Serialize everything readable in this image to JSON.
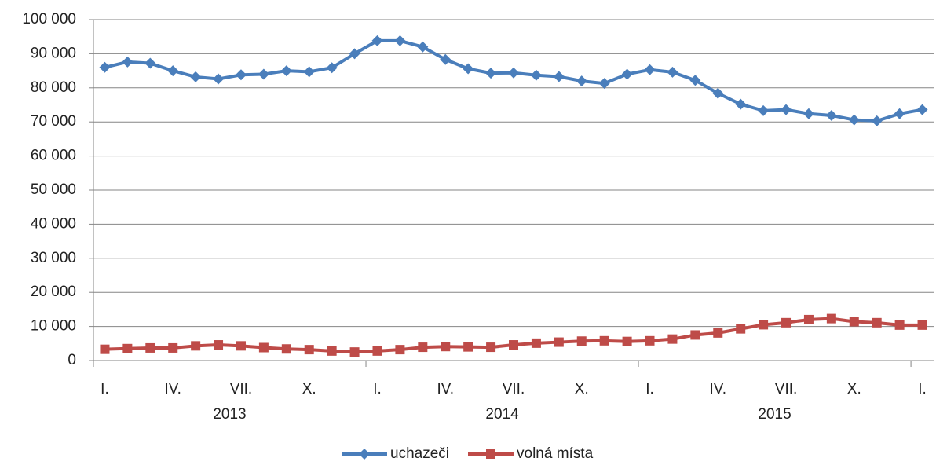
{
  "chart_data": {
    "type": "line",
    "categories": [
      "I.",
      null,
      null,
      "IV.",
      null,
      null,
      "VII.",
      null,
      null,
      "X.",
      null,
      null,
      "I.",
      null,
      null,
      "IV.",
      null,
      null,
      "VII.",
      null,
      null,
      "X.",
      null,
      null,
      "I.",
      null,
      null,
      "IV.",
      null,
      null,
      "VII.",
      null,
      null,
      "X.",
      null,
      null,
      "I."
    ],
    "years": [
      "2013",
      "2014",
      "2015"
    ],
    "series": [
      {
        "name": "uchazeči",
        "color": "#4a7ebb",
        "marker": "diamond",
        "values": [
          86000,
          87600,
          87200,
          85000,
          83200,
          82600,
          83800,
          84000,
          85000,
          84700,
          85900,
          90000,
          93800,
          93800,
          92000,
          88300,
          85600,
          84300,
          84400,
          83700,
          83300,
          82000,
          81300,
          84000,
          85300,
          84600,
          82200,
          78400,
          75200,
          73300,
          73600,
          72400,
          71900,
          70600,
          70300,
          72400,
          73600
        ]
      },
      {
        "name": "volná místa",
        "color": "#be4b48",
        "marker": "square",
        "values": [
          3300,
          3500,
          3700,
          3700,
          4300,
          4600,
          4300,
          3800,
          3400,
          3200,
          2800,
          2500,
          2800,
          3200,
          3900,
          4100,
          4000,
          3900,
          4600,
          5100,
          5400,
          5700,
          5800,
          5600,
          5800,
          6300,
          7500,
          8100,
          9300,
          10500,
          11100,
          12000,
          12300,
          11400,
          11100,
          10400,
          10400
        ]
      }
    ],
    "ylim": [
      0,
      100000
    ],
    "yticks": [
      {
        "value": 0,
        "label": "0"
      },
      {
        "value": 10000,
        "label": "10 000"
      },
      {
        "value": 20000,
        "label": "20 000"
      },
      {
        "value": 30000,
        "label": "30 000"
      },
      {
        "value": 40000,
        "label": "40 000"
      },
      {
        "value": 50000,
        "label": "50 000"
      },
      {
        "value": 60000,
        "label": "60 000"
      },
      {
        "value": 70000,
        "label": "70 000"
      },
      {
        "value": 80000,
        "label": "80 000"
      },
      {
        "value": 90000,
        "label": "90 000"
      },
      {
        "value": 100000,
        "label": "100 000"
      }
    ],
    "grid": true,
    "legend": "bottom"
  }
}
